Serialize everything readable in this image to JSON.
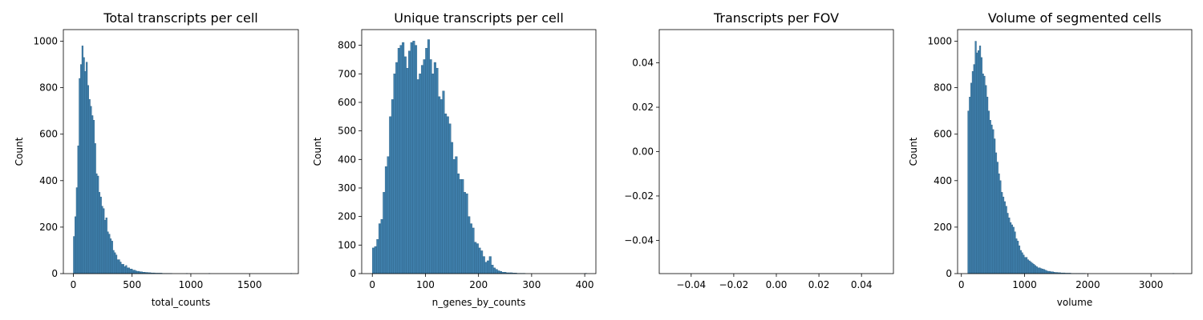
{
  "chart_data": [
    {
      "type": "bar",
      "title": "Total transcripts per cell",
      "xlabel": "total_counts",
      "ylabel": "Count",
      "xlim": [
        -85,
        1915
      ],
      "ylim": [
        0,
        1050
      ],
      "xticks": [
        0,
        500,
        1000,
        1500
      ],
      "xtick_labels": [
        "0",
        "500",
        "1000",
        "1500"
      ],
      "yticks": [
        0,
        200,
        400,
        600,
        800,
        1000
      ],
      "ytick_labels": [
        "0",
        "200",
        "400",
        "600",
        "800",
        "1000"
      ],
      "bin_start": 0,
      "bin_width": 12,
      "values": [
        160,
        245,
        370,
        550,
        840,
        900,
        980,
        930,
        870,
        910,
        810,
        750,
        720,
        680,
        660,
        560,
        430,
        420,
        350,
        330,
        290,
        280,
        230,
        240,
        180,
        170,
        150,
        140,
        100,
        90,
        80,
        60,
        60,
        50,
        40,
        40,
        30,
        35,
        25,
        25,
        20,
        20,
        15,
        15,
        12,
        10,
        10,
        8,
        8,
        6,
        6,
        5,
        5,
        4,
        4,
        3,
        3,
        3,
        2,
        2,
        2,
        2,
        2,
        1,
        1,
        1,
        1,
        1,
        1,
        1,
        0,
        0,
        0,
        0,
        0,
        0,
        0,
        0,
        0,
        0,
        1,
        0,
        0,
        0,
        0,
        0,
        0,
        0,
        0,
        0,
        0,
        0,
        0,
        0,
        0,
        0,
        1,
        0,
        0,
        0,
        0,
        0,
        0,
        0,
        0,
        0,
        0,
        0,
        0,
        0,
        0,
        0,
        0,
        0,
        0,
        0,
        0,
        0,
        0,
        0,
        0,
        0,
        0,
        0,
        0,
        0,
        0,
        0,
        0,
        0,
        0,
        0,
        0,
        0,
        0,
        0,
        0,
        0,
        0,
        0,
        0,
        0,
        0,
        0,
        0,
        0,
        0,
        0,
        0,
        0,
        0,
        0,
        0,
        0,
        1
      ]
    },
    {
      "type": "bar",
      "title": "Unique transcripts per cell",
      "xlabel": "n_genes_by_counts",
      "ylabel": "Count",
      "xlim": [
        -20,
        421
      ],
      "ylim": [
        0,
        855
      ],
      "xticks": [
        0,
        100,
        200,
        300,
        400
      ],
      "xtick_labels": [
        "0",
        "100",
        "200",
        "300",
        "400"
      ],
      "yticks": [
        0,
        100,
        200,
        300,
        400,
        500,
        600,
        700,
        800
      ],
      "ytick_labels": [
        "0",
        "100",
        "200",
        "300",
        "400",
        "500",
        "600",
        "700",
        "800"
      ],
      "bin_start": 0,
      "bin_width": 4,
      "values": [
        90,
        95,
        120,
        175,
        190,
        285,
        375,
        410,
        550,
        610,
        700,
        740,
        790,
        800,
        810,
        760,
        720,
        780,
        810,
        815,
        800,
        680,
        700,
        730,
        750,
        790,
        820,
        750,
        700,
        740,
        720,
        620,
        610,
        640,
        560,
        550,
        525,
        460,
        400,
        410,
        350,
        330,
        330,
        285,
        280,
        200,
        175,
        160,
        110,
        105,
        90,
        80,
        60,
        40,
        45,
        60,
        30,
        20,
        15,
        10,
        8,
        5,
        5,
        3,
        3,
        3,
        2,
        2,
        1,
        1,
        1,
        1,
        0,
        0,
        0,
        0,
        0,
        0,
        0,
        0,
        0,
        0,
        0,
        0,
        0,
        0,
        0,
        0,
        0,
        0,
        0,
        0,
        0,
        0,
        0,
        0,
        0,
        0,
        0,
        0,
        1
      ]
    },
    {
      "type": "bar",
      "title": "Transcripts per FOV",
      "xlabel": "",
      "ylabel": "",
      "xlim": [
        -0.055,
        0.055
      ],
      "ylim": [
        -0.055,
        0.055
      ],
      "xticks": [
        -0.04,
        -0.02,
        0.0,
        0.02,
        0.04
      ],
      "xtick_labels": [
        "−0.04",
        "−0.02",
        "0.00",
        "0.02",
        "0.04"
      ],
      "yticks": [
        -0.04,
        -0.02,
        0.0,
        0.02,
        0.04
      ],
      "ytick_labels": [
        "−0.04",
        "−0.02",
        "0.00",
        "0.02",
        "0.04"
      ],
      "bin_start": 0,
      "bin_width": 1,
      "values": []
    },
    {
      "type": "bar",
      "title": "Volume of segmented cells",
      "xlabel": "volume",
      "ylabel": "Count",
      "xlim": [
        -60,
        3645
      ],
      "ylim": [
        0,
        1050
      ],
      "xticks": [
        0,
        1000,
        2000,
        3000
      ],
      "xtick_labels": [
        "0",
        "1000",
        "2000",
        "3000"
      ],
      "yticks": [
        0,
        200,
        400,
        600,
        800,
        1000
      ],
      "ytick_labels": [
        "0",
        "200",
        "400",
        "600",
        "800",
        "1000"
      ],
      "bin_start": 100,
      "bin_width": 23,
      "values": [
        700,
        760,
        820,
        870,
        900,
        1000,
        950,
        960,
        980,
        930,
        860,
        850,
        810,
        760,
        700,
        660,
        640,
        620,
        580,
        520,
        480,
        430,
        400,
        350,
        330,
        310,
        290,
        260,
        240,
        220,
        210,
        200,
        180,
        150,
        140,
        120,
        100,
        90,
        80,
        70,
        70,
        60,
        55,
        50,
        45,
        40,
        35,
        30,
        25,
        25,
        22,
        20,
        18,
        15,
        12,
        10,
        10,
        8,
        8,
        6,
        5,
        5,
        4,
        4,
        3,
        3,
        3,
        2,
        2,
        2,
        2,
        1,
        1,
        1,
        1,
        1,
        1,
        1,
        1,
        1,
        1,
        0,
        0,
        0,
        0,
        0,
        0,
        0,
        0,
        0,
        0,
        0,
        0,
        0,
        0,
        0,
        0,
        0,
        0,
        0,
        0,
        0,
        0,
        0,
        0,
        0,
        0,
        0,
        0,
        0,
        0,
        0,
        0,
        0,
        0,
        0,
        0,
        0,
        0,
        0,
        0,
        0,
        0,
        0,
        0,
        0,
        0,
        0,
        0,
        0,
        0,
        0,
        0,
        0,
        0,
        0,
        0,
        0,
        0,
        0,
        0,
        1
      ]
    }
  ]
}
